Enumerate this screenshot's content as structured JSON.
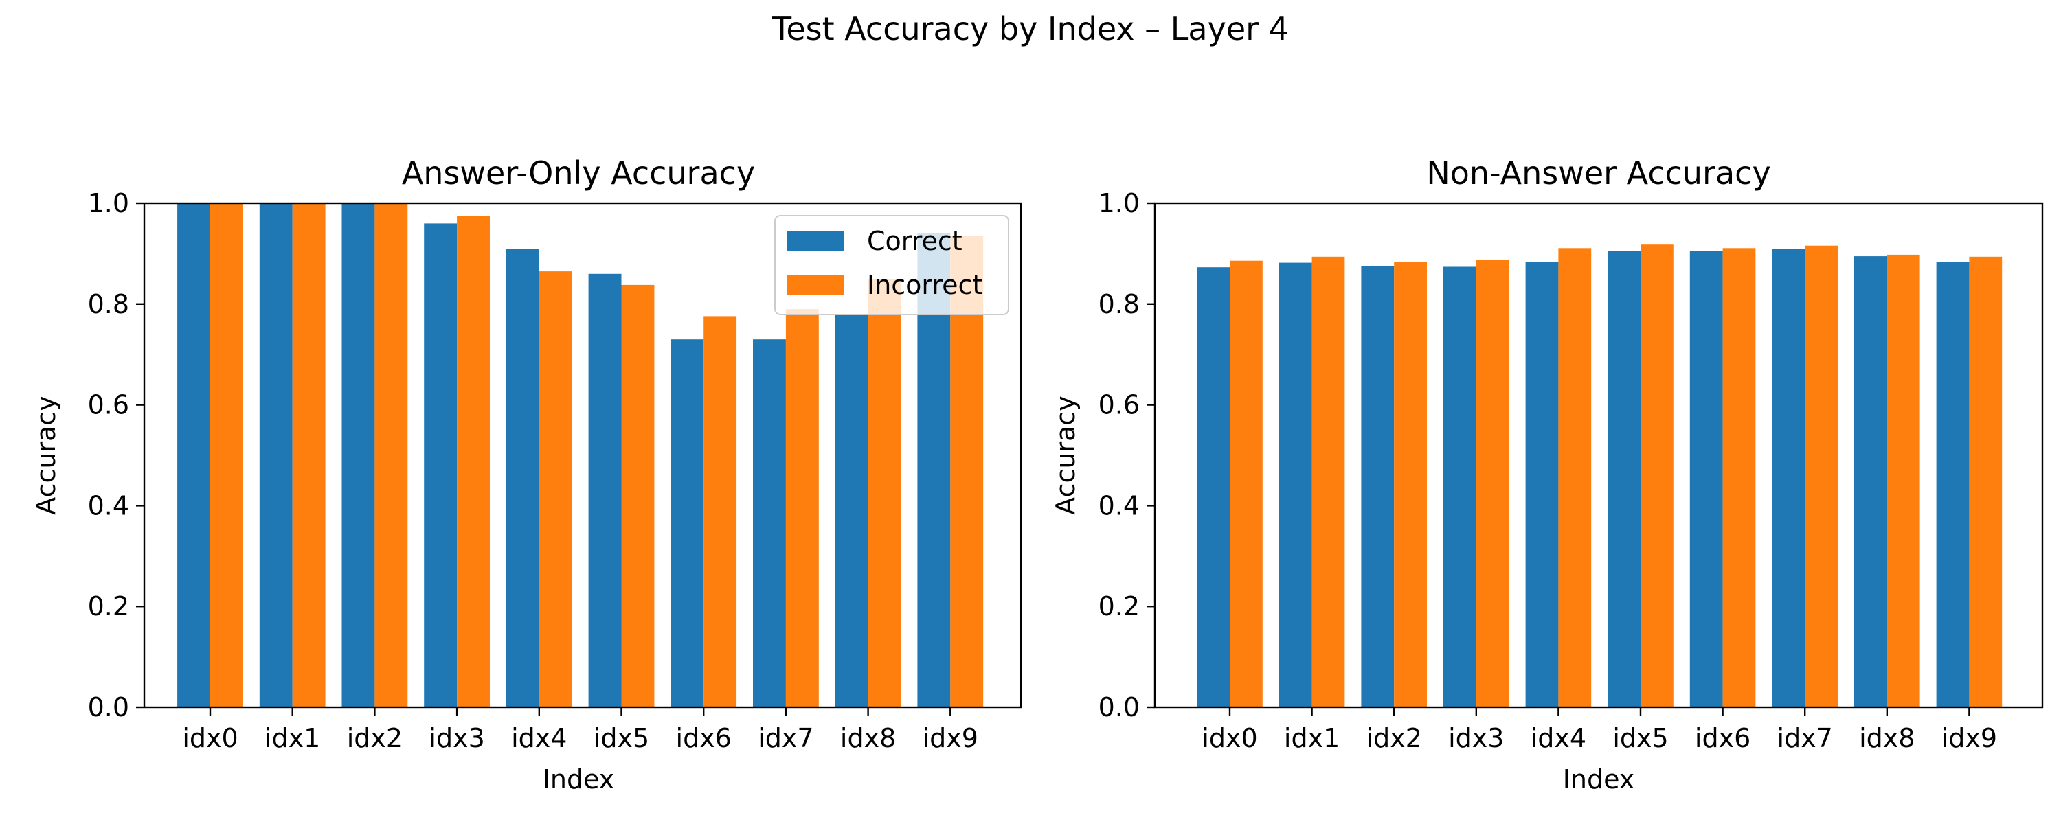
{
  "figure": {
    "title": "Test Accuracy by Index – Layer 4"
  },
  "colors": {
    "correct": "#1f77b4",
    "incorrect": "#ff7f0e"
  },
  "chart_data": [
    {
      "type": "bar",
      "title": "Answer-Only Accuracy",
      "xlabel": "Index",
      "ylabel": "Accuracy",
      "ylim": [
        0,
        1.0
      ],
      "yticks": [
        "0.0",
        "0.2",
        "0.4",
        "0.6",
        "0.8",
        "1.0"
      ],
      "categories": [
        "idx0",
        "idx1",
        "idx2",
        "idx3",
        "idx4",
        "idx5",
        "idx6",
        "idx7",
        "idx8",
        "idx9"
      ],
      "series": [
        {
          "name": "Correct",
          "values": [
            1.0,
            1.0,
            1.0,
            0.96,
            0.91,
            0.86,
            0.73,
            0.73,
            0.78,
            0.94
          ]
        },
        {
          "name": "Incorrect",
          "values": [
            1.0,
            1.0,
            1.0,
            0.975,
            0.865,
            0.838,
            0.776,
            0.79,
            0.85,
            0.935
          ]
        }
      ],
      "legend": {
        "placement": "upper right",
        "entries": [
          "Correct",
          "Incorrect"
        ]
      },
      "grid": false
    },
    {
      "type": "bar",
      "title": "Non-Answer Accuracy",
      "xlabel": "Index",
      "ylabel": "Accuracy",
      "ylim": [
        0,
        1.0
      ],
      "yticks": [
        "0.0",
        "0.2",
        "0.4",
        "0.6",
        "0.8",
        "1.0"
      ],
      "categories": [
        "idx0",
        "idx1",
        "idx2",
        "idx3",
        "idx4",
        "idx5",
        "idx6",
        "idx7",
        "idx8",
        "idx9"
      ],
      "series": [
        {
          "values": [
            0.873,
            0.882,
            0.876,
            0.874,
            0.884,
            0.905,
            0.905,
            0.91,
            0.895,
            0.884
          ]
        },
        {
          "values": [
            0.886,
            0.894,
            0.884,
            0.887,
            0.911,
            0.918,
            0.911,
            0.916,
            0.898,
            0.894
          ]
        }
      ],
      "grid": false
    }
  ]
}
